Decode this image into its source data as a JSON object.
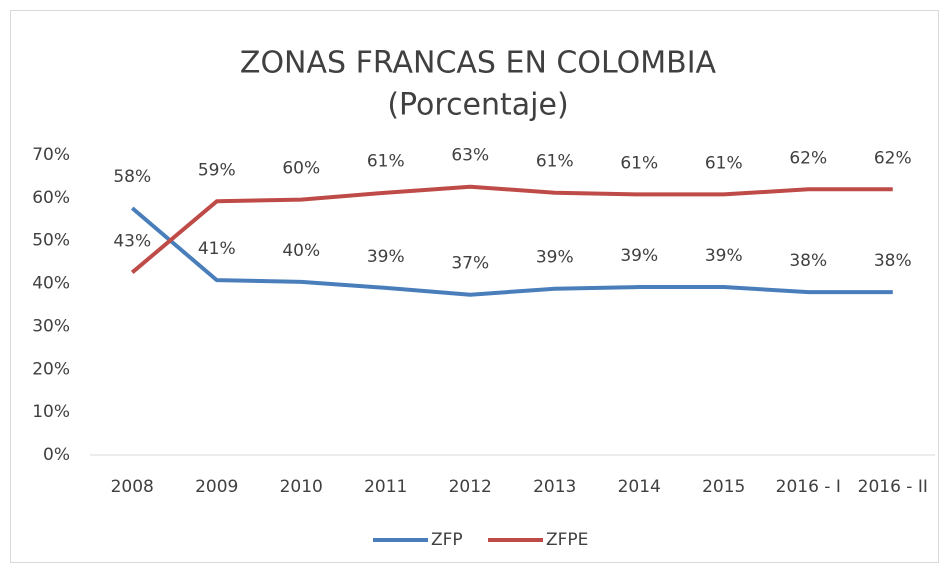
{
  "chart_data": {
    "type": "line",
    "title": "ZONAS FRANCAS EN COLOMBIA",
    "subtitle": "(Porcentaje)",
    "categories": [
      "2008",
      "2009",
      "2010",
      "2011",
      "2012",
      "2013",
      "2014",
      "2015",
      "2016 - I",
      "2016 - II"
    ],
    "series": [
      {
        "name": "ZFP",
        "color": "#4a7ebb",
        "values": [
          57.6,
          40.8,
          40.4,
          39.0,
          37.4,
          38.8,
          39.2,
          39.2,
          38.0,
          38.0
        ],
        "value_labels": [
          "58%",
          "41%",
          "40%",
          "39%",
          "37%",
          "39%",
          "39%",
          "39%",
          "38%",
          "38%"
        ]
      },
      {
        "name": "ZFPE",
        "color": "#be4b48",
        "values": [
          42.6,
          59.2,
          59.6,
          61.2,
          62.6,
          61.2,
          60.8,
          60.8,
          62.0,
          62.0
        ],
        "value_labels": [
          "43%",
          "59%",
          "60%",
          "61%",
          "63%",
          "61%",
          "61%",
          "61%",
          "62%",
          "62%"
        ]
      }
    ],
    "ylim": [
      0,
      70
    ],
    "yticks": [
      {
        "value": 0,
        "label": "0%"
      },
      {
        "value": 10,
        "label": "10%"
      },
      {
        "value": 20,
        "label": "20%"
      },
      {
        "value": 30,
        "label": "30%"
      },
      {
        "value": 40,
        "label": "40%"
      },
      {
        "value": 50,
        "label": "50%"
      },
      {
        "value": 60,
        "label": "60%"
      },
      {
        "value": 70,
        "label": "70%"
      }
    ],
    "grid": false,
    "legend": "bottom"
  }
}
